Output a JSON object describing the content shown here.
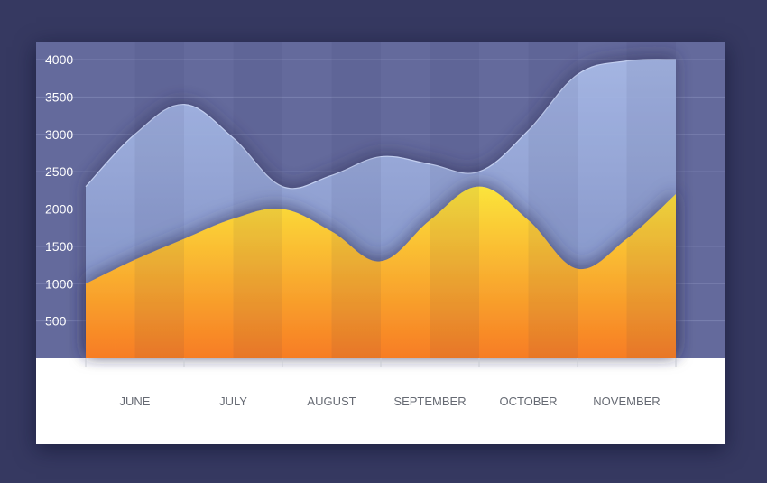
{
  "chart_data": {
    "type": "area",
    "categories": [
      "JUNE",
      "JULY",
      "AUGUST",
      "SEPTEMBER",
      "OCTOBER",
      "NOVEMBER"
    ],
    "x": [
      0,
      0.5,
      1,
      1.5,
      2,
      2.5,
      3,
      3.5,
      4,
      4.5,
      5,
      5.5,
      6
    ],
    "series": [
      {
        "values": [
          2300,
          3000,
          3400,
          2950,
          2300,
          2450,
          2700,
          2600,
          2500,
          3050,
          3800,
          3980,
          4000
        ]
      },
      {
        "values": [
          1000,
          1320,
          1600,
          1870,
          2000,
          1700,
          1300,
          1850,
          2300,
          1850,
          1200,
          1600,
          2200
        ]
      }
    ],
    "yticks": [
      500,
      1000,
      1500,
      2000,
      2500,
      3000,
      3500,
      4000
    ],
    "ylim": [
      0,
      4000
    ],
    "grid": true,
    "colors": {
      "background": "#363961",
      "plot_background": "#646a9c",
      "back_area": "#9fb1e0",
      "back_area_line": "#c3cff0",
      "front_area_top": "#fbe43b",
      "front_area_bottom": "#f77c24",
      "axis_panel": "#ffffff",
      "x_label": "#666a73",
      "y_label": "#ffffff"
    }
  }
}
